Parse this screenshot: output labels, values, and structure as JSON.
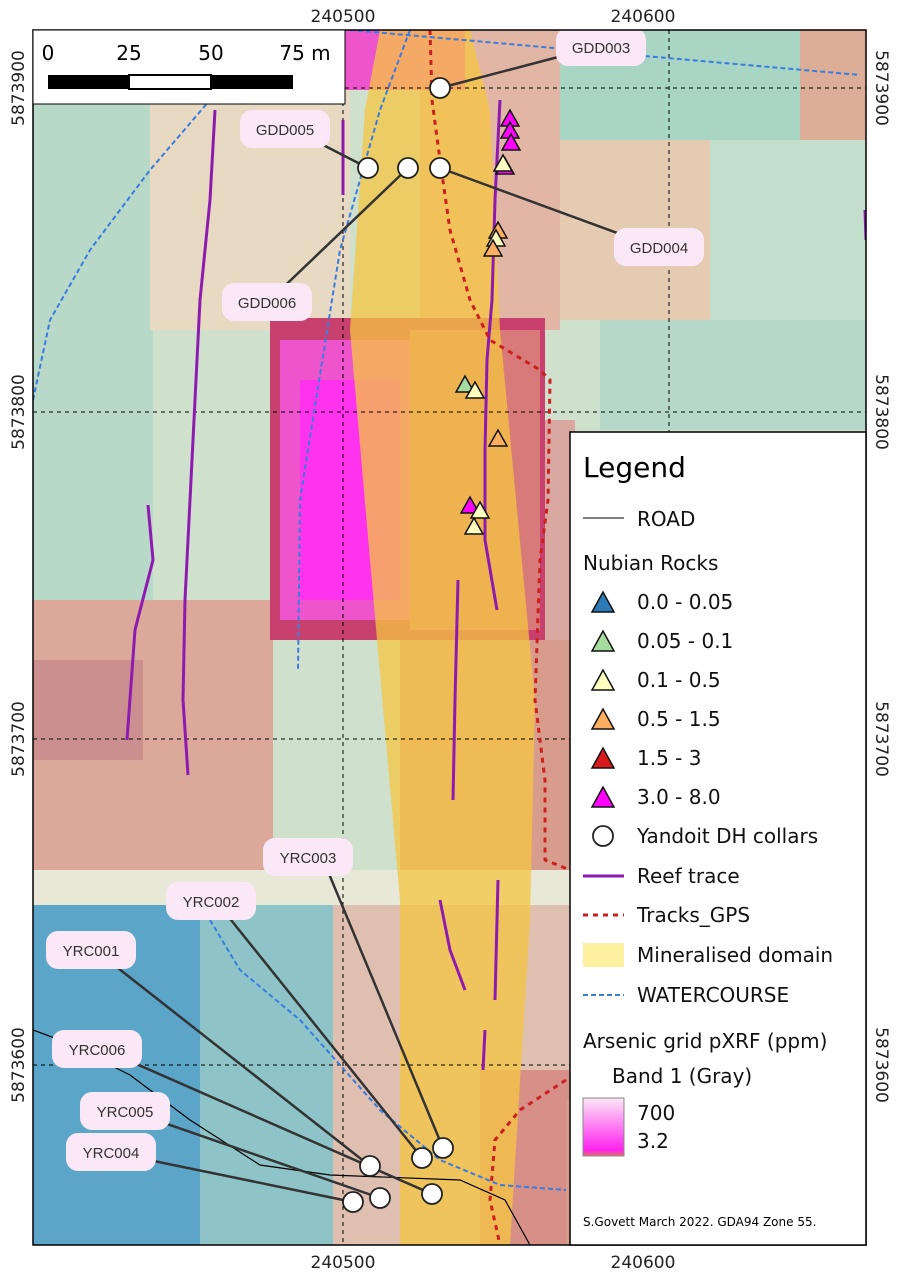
{
  "axes": {
    "x_ticks": [
      "240500",
      "240600"
    ],
    "y_ticks": [
      "5873900",
      "5873800",
      "5873700",
      "5873600"
    ]
  },
  "scale_bar": {
    "labels": [
      "0",
      "25",
      "50",
      "75 m"
    ]
  },
  "collars": {
    "labels": [
      "GDD003",
      "GDD004",
      "GDD005",
      "GDD006",
      "YRC001",
      "YRC002",
      "YRC003",
      "YRC004",
      "YRC005",
      "YRC006"
    ]
  },
  "legend": {
    "title": "Legend",
    "road": "ROAD",
    "rocks_title": "Nubian Rocks",
    "rock_classes": [
      {
        "label": "0.0 - 0.05",
        "color": "#2c7bb6"
      },
      {
        "label": "0.05 - 0.1",
        "color": "#a6dba0"
      },
      {
        "label": "0.1 - 0.5",
        "color": "#ffffbf"
      },
      {
        "label": "0.5 - 1.5",
        "color": "#fdae61"
      },
      {
        "label": "1.5 - 3",
        "color": "#d7191c"
      },
      {
        "label": "3.0 - 8.0",
        "color": "#ff00ff"
      }
    ],
    "collars": "Yandoit DH collars",
    "reef": "Reef trace",
    "tracks": "Tracks_GPS",
    "domain": "Mineralised domain",
    "watercourse": "WATERCOURSE",
    "raster_title": "Arsenic grid pXRF (ppm)",
    "raster_band": "Band 1 (Gray)",
    "raster_max": "700",
    "raster_min": "3.2",
    "credit": "S.Govett March 2022. GDA94 Zone 55."
  },
  "colors": {
    "reef": "#8e1bb0",
    "tracks": "#cc1f1f",
    "watercourse": "#3a7be0",
    "domain": "#f5c542",
    "road": "#000000"
  }
}
